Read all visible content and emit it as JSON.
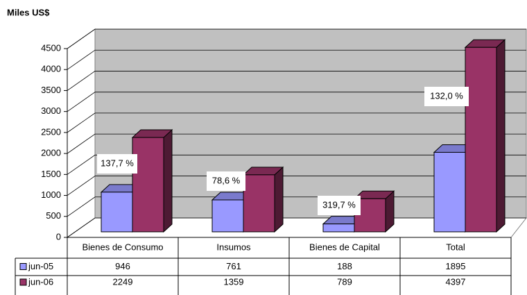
{
  "chart_data": {
    "type": "bar3d",
    "y_axis_label": "Miles US$",
    "categories": [
      "Bienes de Consumo",
      "Insumos",
      "Bienes de Capital",
      "Total"
    ],
    "series": [
      {
        "name": "jun-05",
        "color": "#9999ff",
        "values": [
          946,
          761,
          188,
          1895
        ]
      },
      {
        "name": "jun-06",
        "color": "#993366",
        "values": [
          2249,
          1359,
          789,
          4397
        ]
      }
    ],
    "annotations": [
      "137,7 %",
      "78,6 %",
      "319,7 %",
      "132,0 %"
    ],
    "ylim": [
      0,
      4500
    ],
    "yticks": [
      0,
      500,
      1000,
      1500,
      2000,
      2500,
      3000,
      3500,
      4000,
      4500
    ],
    "grid": true,
    "data_table": true
  }
}
